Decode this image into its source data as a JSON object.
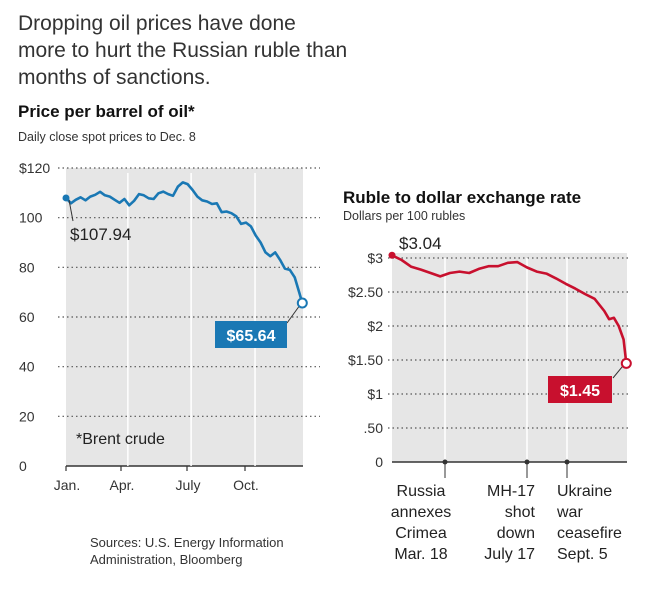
{
  "headline": "Dropping oil prices have done more to hurt the Russian ruble than months of sanctions.",
  "source": "Sources: U.S. Energy Information Administration, Bloomberg",
  "colors": {
    "oil": "#1a78b4",
    "ruble": "#c8102e",
    "plot_bg": "#e6e6e6"
  },
  "chart_data": [
    {
      "type": "line",
      "title": "Price per barrel of oil*",
      "subtitle": "Daily close spot prices to Dec. 8",
      "footnote": "*Brent crude",
      "ylim": [
        0,
        120
      ],
      "y_ticks": [
        "$120",
        "100",
        "80",
        "60",
        "40",
        "20",
        "0"
      ],
      "x_ticks": [
        "Jan.",
        "Apr.",
        "July",
        "Oct."
      ],
      "grid": true,
      "series": [
        {
          "x": [
            "2014-01-02",
            "2014-01-09",
            "2014-01-16",
            "2014-01-23",
            "2014-01-30",
            "2014-02-06",
            "2014-02-13",
            "2014-02-20",
            "2014-02-27",
            "2014-03-06",
            "2014-03-13",
            "2014-03-20",
            "2014-03-27",
            "2014-04-03",
            "2014-04-10",
            "2014-04-17",
            "2014-04-24",
            "2014-05-01",
            "2014-05-08",
            "2014-05-15",
            "2014-05-22",
            "2014-05-29",
            "2014-06-05",
            "2014-06-12",
            "2014-06-19",
            "2014-06-26",
            "2014-07-03",
            "2014-07-10",
            "2014-07-17",
            "2014-07-24",
            "2014-07-31",
            "2014-08-07",
            "2014-08-14",
            "2014-08-21",
            "2014-08-28",
            "2014-09-04",
            "2014-09-11",
            "2014-09-18",
            "2014-09-25",
            "2014-10-02",
            "2014-10-09",
            "2014-10-16",
            "2014-10-23",
            "2014-10-30",
            "2014-11-06",
            "2014-11-13",
            "2014-11-20",
            "2014-11-27",
            "2014-12-04",
            "2014-12-08"
          ],
          "values": [
            107.94,
            105.8,
            107.2,
            108.2,
            107.0,
            108.5,
            109.2,
            110.4,
            109.0,
            108.5,
            107.2,
            106.0,
            107.5,
            105.0,
            106.8,
            109.5,
            109.0,
            107.8,
            107.5,
            109.8,
            110.5,
            109.5,
            108.8,
            112.5,
            114.2,
            113.5,
            111.2,
            108.5,
            107.0,
            106.5,
            105.5,
            105.8,
            102.2,
            102.5,
            101.8,
            100.5,
            97.5,
            98.0,
            96.5,
            92.8,
            90.0,
            86.0,
            84.5,
            86.0,
            83.0,
            79.5,
            79.0,
            76.0,
            69.5,
            65.64
          ]
        }
      ],
      "annotations": [
        {
          "label": "$107.94",
          "value": 107.94,
          "date": "2014-01-02"
        },
        {
          "label": "$65.64",
          "value": 65.64,
          "date": "2014-12-08"
        }
      ]
    },
    {
      "type": "line",
      "title": "Ruble to dollar exchange rate",
      "subtitle": "Dollars per 100 rubles",
      "ylim": [
        0,
        3
      ],
      "y_ticks": [
        {
          "label": "$3",
          "value": 3.0
        },
        {
          "label": "$2.50",
          "value": 2.5
        },
        {
          "label": "$2",
          "value": 2.0
        },
        {
          "label": "$1.50",
          "value": 1.5
        },
        {
          "label": "$1",
          "value": 1.0
        },
        {
          "label": ".50",
          "value": 0.5
        },
        {
          "label": "0",
          "value": 0.0
        }
      ],
      "grid": true,
      "events": [
        {
          "label": "Russia annexes Crimea Mar. 18",
          "lines": [
            "Russia",
            "annexes",
            "Crimea",
            "Mar. 18"
          ],
          "date": "2014-03-18"
        },
        {
          "label": "MH-17 shot down July 17",
          "lines": [
            "MH-17",
            "shot",
            "down",
            "July 17"
          ],
          "date": "2014-07-17"
        },
        {
          "label": "Ukraine war ceasefire Sept. 5",
          "lines": [
            "Ukraine",
            "war",
            "ceasefire",
            "Sept. 5"
          ],
          "date": "2014-09-05"
        }
      ],
      "series": [
        {
          "x": [
            "2014-01-02",
            "2014-01-16",
            "2014-01-30",
            "2014-02-13",
            "2014-02-27",
            "2014-03-13",
            "2014-03-27",
            "2014-04-10",
            "2014-04-24",
            "2014-05-08",
            "2014-05-22",
            "2014-06-05",
            "2014-06-19",
            "2014-07-03",
            "2014-07-17",
            "2014-07-31",
            "2014-08-14",
            "2014-08-28",
            "2014-09-11",
            "2014-09-25",
            "2014-10-09",
            "2014-10-23",
            "2014-11-06",
            "2014-11-13",
            "2014-11-20",
            "2014-11-27",
            "2014-12-04",
            "2014-12-08"
          ],
          "values": [
            3.04,
            2.97,
            2.87,
            2.83,
            2.78,
            2.73,
            2.78,
            2.8,
            2.78,
            2.84,
            2.88,
            2.88,
            2.93,
            2.94,
            2.86,
            2.8,
            2.77,
            2.7,
            2.62,
            2.55,
            2.47,
            2.4,
            2.22,
            2.1,
            2.12,
            2.0,
            1.8,
            1.45
          ]
        }
      ],
      "annotations": [
        {
          "label": "$3.04",
          "value": 3.04,
          "date": "2014-01-02"
        },
        {
          "label": "$1.45",
          "value": 1.45,
          "date": "2014-12-08"
        }
      ]
    }
  ]
}
